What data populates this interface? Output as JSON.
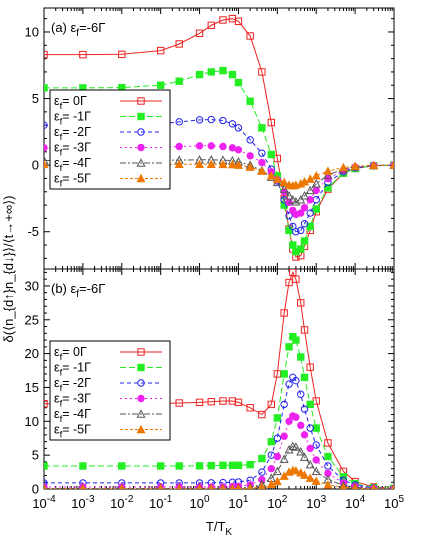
{
  "chart_data": {
    "type": "line",
    "x_scale": "log",
    "xlim": [
      0.0001,
      100000
    ],
    "xlabel_main": "T/T",
    "xlabel_sub": "K",
    "ylabel": "δ(⟨n_{d↑}n_{d↓}⟩/⟨t→+∞⟩)",
    "x_tick_labels": [
      {
        "base": "10",
        "exp": "-4"
      },
      {
        "base": "10",
        "exp": "-3"
      },
      {
        "base": "10",
        "exp": "-2"
      },
      {
        "base": "10",
        "exp": "-1"
      },
      {
        "base": "10",
        "exp": "0"
      },
      {
        "base": "10",
        "exp": "1"
      },
      {
        "base": "10",
        "exp": "2"
      },
      {
        "base": "10",
        "exp": "3"
      },
      {
        "base": "10",
        "exp": "4"
      },
      {
        "base": "10",
        "exp": "5"
      }
    ],
    "panels": [
      {
        "id": "a",
        "label": "(a) ε",
        "label_sub": "f",
        "label_tail": "=-6Γ",
        "ylim": [
          -7.8,
          11.8
        ],
        "y_ticks": [
          -5,
          0,
          5,
          10
        ],
        "y_tick_labels": [
          "-5",
          "0",
          "5",
          "10"
        ],
        "series": [
          {
            "name": "=  0Γ",
            "color": "#ee2222",
            "marker": "open-square",
            "dash": "",
            "x": [
              0.0001,
              0.001,
              0.01,
              0.1,
              0.3,
              1,
              2,
              4,
              7,
              10,
              20,
              40,
              70,
              100,
              150,
              200,
              250,
              300,
              400,
              500,
              700,
              1000,
              2000,
              5000,
              10000,
              30000,
              100000
            ],
            "y": [
              8.3,
              8.3,
              8.32,
              8.6,
              9.1,
              9.9,
              10.5,
              10.9,
              11.0,
              10.8,
              9.7,
              7.0,
              3.2,
              0.5,
              -2.5,
              -4.8,
              -6.3,
              -6.9,
              -6.8,
              -6.1,
              -4.9,
              -3.5,
              -1.8,
              -0.6,
              -0.25,
              -0.05,
              0.0
            ]
          },
          {
            "name": "= -1Γ",
            "color": "#22ee22",
            "marker": "filled-square",
            "dash": "6,3",
            "x": [
              0.0001,
              0.001,
              0.01,
              0.1,
              0.3,
              1,
              2,
              4,
              7,
              10,
              20,
              40,
              70,
              100,
              150,
              200,
              250,
              300,
              400,
              500,
              700,
              1000,
              2000,
              5000,
              10000,
              30000,
              100000
            ],
            "y": [
              5.8,
              5.8,
              5.82,
              6.0,
              6.3,
              6.8,
              7.0,
              7.1,
              6.8,
              6.2,
              4.8,
              2.8,
              0.8,
              -0.8,
              -3.0,
              -4.9,
              -6.0,
              -6.5,
              -6.3,
              -5.7,
              -4.6,
              -3.3,
              -1.7,
              -0.6,
              -0.25,
              -0.05,
              0.0
            ]
          },
          {
            "name": "= -2Γ",
            "color": "#2222ee",
            "marker": "open-circle",
            "dash": "4,3",
            "x": [
              0.0001,
              0.001,
              0.01,
              0.1,
              0.3,
              1,
              2,
              4,
              7,
              10,
              20,
              40,
              70,
              100,
              150,
              200,
              250,
              300,
              400,
              500,
              700,
              1000,
              2000,
              5000,
              10000,
              30000,
              100000
            ],
            "y": [
              3.0,
              3.0,
              3.02,
              3.1,
              3.25,
              3.4,
              3.42,
              3.35,
              3.1,
              2.8,
              1.9,
              0.9,
              -0.3,
              -1.2,
              -2.6,
              -3.8,
              -4.6,
              -5.0,
              -4.9,
              -4.4,
              -3.6,
              -2.6,
              -1.3,
              -0.5,
              -0.2,
              -0.05,
              0.0
            ]
          },
          {
            "name": "= -3Γ",
            "color": "#ee22ee",
            "marker": "filled-circle",
            "dash": "2,3",
            "x": [
              0.0001,
              0.001,
              0.01,
              0.1,
              0.3,
              1,
              2,
              4,
              7,
              10,
              20,
              40,
              70,
              100,
              150,
              200,
              250,
              300,
              400,
              500,
              700,
              1000,
              2000,
              5000,
              10000,
              30000,
              100000
            ],
            "y": [
              1.3,
              1.3,
              1.3,
              1.35,
              1.4,
              1.45,
              1.45,
              1.4,
              1.3,
              1.15,
              0.7,
              0.2,
              -0.5,
              -1.1,
              -2.0,
              -2.8,
              -3.4,
              -3.7,
              -3.6,
              -3.2,
              -2.6,
              -1.9,
              -1.0,
              -0.4,
              -0.15,
              -0.03,
              0.0
            ]
          },
          {
            "name": "= -4Γ",
            "color": "#555555",
            "marker": "open-triangle",
            "dash": "6,2,2,2",
            "x": [
              0.0001,
              0.001,
              0.01,
              0.1,
              0.3,
              1,
              2,
              4,
              7,
              10,
              20,
              40,
              70,
              100,
              150,
              200,
              250,
              300,
              400,
              500,
              700,
              1000,
              2000,
              5000,
              10000,
              30000,
              100000
            ],
            "y": [
              0.35,
              0.35,
              0.35,
              0.37,
              0.38,
              0.4,
              0.4,
              0.38,
              0.33,
              0.25,
              0.0,
              -0.4,
              -0.9,
              -1.3,
              -1.8,
              -2.3,
              -2.6,
              -2.75,
              -2.6,
              -2.3,
              -1.9,
              -1.4,
              -0.75,
              -0.3,
              -0.12,
              -0.03,
              0.0
            ]
          },
          {
            "name": "= -5Γ",
            "color": "#ee7700",
            "marker": "filled-triangle",
            "dash": "3,2",
            "x": [
              0.0001,
              0.001,
              0.01,
              0.1,
              0.3,
              1,
              2,
              4,
              7,
              10,
              20,
              40,
              70,
              100,
              150,
              200,
              250,
              300,
              400,
              500,
              700,
              1000,
              2000,
              5000,
              10000,
              30000,
              100000
            ],
            "y": [
              0.05,
              0.05,
              0.05,
              0.05,
              0.06,
              0.06,
              0.06,
              0.05,
              0.04,
              0.0,
              -0.15,
              -0.45,
              -0.8,
              -1.05,
              -1.3,
              -1.5,
              -1.55,
              -1.5,
              -1.4,
              -1.25,
              -1.05,
              -0.8,
              -0.45,
              -0.18,
              -0.08,
              -0.02,
              0.0
            ]
          }
        ]
      },
      {
        "id": "b",
        "label": "(b) ε",
        "label_sub": "f",
        "label_tail": "=-6Γ",
        "ylim": [
          0,
          32.5
        ],
        "y_ticks": [
          0,
          5,
          10,
          15,
          20,
          25,
          30
        ],
        "y_tick_labels": [
          "0",
          "5",
          "10",
          "15",
          "20",
          "25",
          "30"
        ],
        "series": [
          {
            "name": "=  0Γ",
            "color": "#ee2222",
            "marker": "open-square",
            "dash": "",
            "x": [
              0.0001,
              0.001,
              0.01,
              0.1,
              0.3,
              1,
              2,
              4,
              7,
              10,
              20,
              40,
              70,
              100,
              150,
              200,
              250,
              300,
              400,
              500,
              700,
              1000,
              2000,
              5000,
              10000,
              30000,
              100000
            ],
            "y": [
              12.6,
              12.6,
              12.6,
              12.65,
              12.7,
              12.8,
              12.9,
              13.0,
              13.0,
              12.8,
              12.0,
              11.0,
              12.5,
              17.0,
              26.0,
              30.5,
              32.0,
              31.0,
              27.5,
              23.5,
              18.0,
              13.0,
              6.8,
              2.6,
              1.1,
              0.3,
              0.1
            ]
          },
          {
            "name": "= -1Γ",
            "color": "#22ee22",
            "marker": "filled-square",
            "dash": "6,3",
            "x": [
              0.0001,
              0.001,
              0.01,
              0.1,
              0.3,
              1,
              2,
              4,
              7,
              10,
              20,
              40,
              70,
              100,
              150,
              200,
              250,
              300,
              400,
              500,
              700,
              1000,
              2000,
              5000,
              10000,
              30000,
              100000
            ],
            "y": [
              3.4,
              3.4,
              3.4,
              3.4,
              3.4,
              3.42,
              3.45,
              3.5,
              3.5,
              3.5,
              3.6,
              4.5,
              7.0,
              10.5,
              17.0,
              21.0,
              22.5,
              22.0,
              19.5,
              16.5,
              12.5,
              9.0,
              4.8,
              1.8,
              0.8,
              0.2,
              0.1
            ]
          },
          {
            "name": "= -2Γ",
            "color": "#2222ee",
            "marker": "open-circle",
            "dash": "4,3",
            "x": [
              0.0001,
              0.001,
              0.01,
              0.1,
              0.3,
              1,
              2,
              4,
              7,
              10,
              20,
              40,
              70,
              100,
              150,
              200,
              250,
              300,
              400,
              500,
              700,
              1000,
              2000,
              5000,
              10000,
              30000,
              100000
            ],
            "y": [
              0.9,
              0.9,
              0.9,
              0.9,
              0.9,
              0.9,
              0.92,
              0.95,
              1.0,
              1.05,
              1.3,
              2.5,
              5.0,
              7.5,
              12.5,
              15.5,
              16.5,
              16.0,
              14.0,
              11.8,
              9.0,
              6.5,
              3.4,
              1.3,
              0.6,
              0.15,
              0.05
            ]
          },
          {
            "name": "= -3Γ",
            "color": "#ee22ee",
            "marker": "filled-circle",
            "dash": "2,3",
            "x": [
              0.0001,
              0.001,
              0.01,
              0.1,
              0.3,
              1,
              2,
              4,
              7,
              10,
              20,
              40,
              70,
              100,
              150,
              200,
              250,
              300,
              400,
              500,
              700,
              1000,
              2000,
              5000,
              10000,
              30000,
              100000
            ],
            "y": [
              0.3,
              0.3,
              0.3,
              0.3,
              0.3,
              0.3,
              0.3,
              0.32,
              0.35,
              0.4,
              0.6,
              1.4,
              3.0,
              4.8,
              7.8,
              10.0,
              10.8,
              10.6,
              9.4,
              8.0,
              6.0,
              4.3,
              2.3,
              0.9,
              0.4,
              0.1,
              0.03
            ]
          },
          {
            "name": "= -4Γ",
            "color": "#555555",
            "marker": "open-triangle",
            "dash": "6,2,2,2",
            "x": [
              0.0001,
              0.001,
              0.01,
              0.1,
              0.3,
              1,
              2,
              4,
              7,
              10,
              20,
              40,
              70,
              100,
              150,
              200,
              250,
              300,
              400,
              500,
              700,
              1000,
              2000,
              5000,
              10000,
              30000,
              100000
            ],
            "y": [
              0.08,
              0.08,
              0.08,
              0.08,
              0.08,
              0.08,
              0.08,
              0.09,
              0.1,
              0.12,
              0.25,
              0.7,
              1.6,
              2.6,
              4.4,
              5.8,
              6.3,
              6.2,
              5.5,
              4.7,
              3.6,
              2.6,
              1.4,
              0.55,
              0.25,
              0.06,
              0.02
            ]
          },
          {
            "name": "= -5Γ",
            "color": "#ee7700",
            "marker": "filled-triangle",
            "dash": "3,2",
            "x": [
              0.0001,
              0.001,
              0.01,
              0.1,
              0.3,
              1,
              2,
              4,
              7,
              10,
              20,
              40,
              70,
              100,
              150,
              200,
              250,
              300,
              400,
              500,
              700,
              1000,
              2000,
              5000,
              10000,
              30000,
              100000
            ],
            "y": [
              0.02,
              0.02,
              0.02,
              0.02,
              0.02,
              0.02,
              0.02,
              0.02,
              0.03,
              0.04,
              0.1,
              0.3,
              0.7,
              1.1,
              1.9,
              2.5,
              2.75,
              2.7,
              2.4,
              2.05,
              1.6,
              1.15,
              0.6,
              0.25,
              0.1,
              0.03,
              0.01
            ]
          }
        ]
      }
    ],
    "legend": {
      "placement": "left",
      "symbol": "ε",
      "symbol_sub": "f",
      "entries": [
        "=  0Γ",
        "= -1Γ",
        "= -2Γ",
        "= -3Γ",
        "= -4Γ",
        "= -5Γ"
      ]
    }
  }
}
